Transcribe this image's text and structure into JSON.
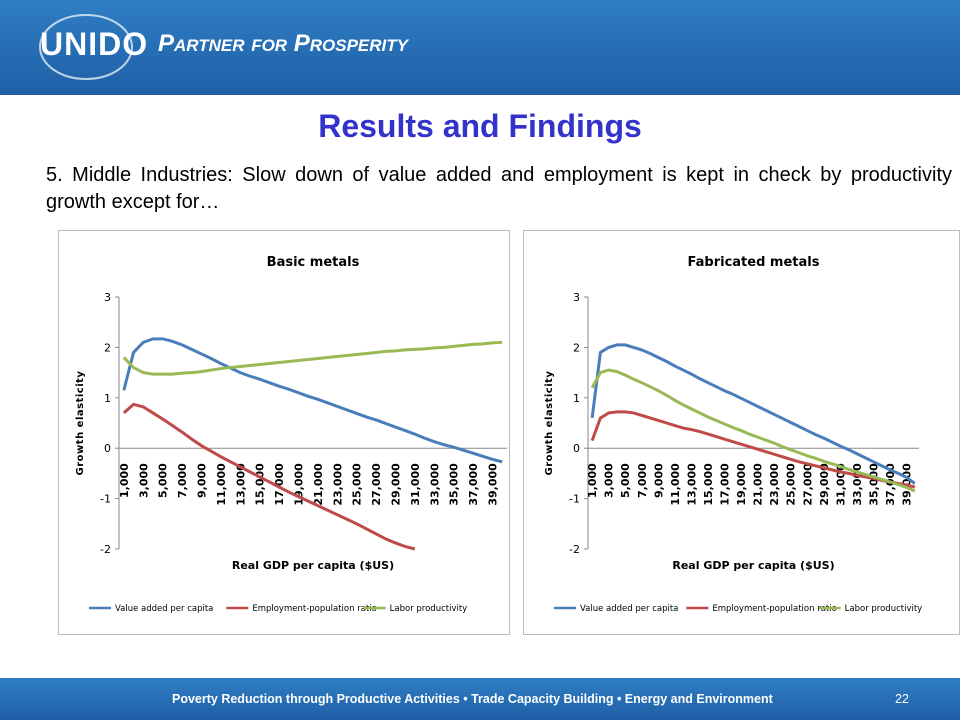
{
  "header": {
    "org": "UNIDO",
    "tagline": "Partner for Prosperity"
  },
  "title": "Results and Findings",
  "body": "5. Middle Industries: Slow down of value added and employment is kept in check by productivity growth except for…",
  "footer": {
    "text": "Poverty Reduction through Productive Activities • Trade Capacity Building • Energy and Environment",
    "page": "22"
  },
  "chart_data": [
    {
      "type": "line",
      "title": "Basic metals",
      "xlabel": "Real GDP per capita ($US)",
      "ylabel": "Growth elasticity",
      "categories": [
        "1,000",
        null,
        "3,000",
        null,
        "5,000",
        null,
        "7,000",
        null,
        "9,000",
        null,
        "11,000",
        null,
        "13,000",
        null,
        "15,000",
        null,
        "17,000",
        null,
        "19,000",
        null,
        "21,000",
        null,
        "23,000",
        null,
        "25,000",
        null,
        "27,000",
        null,
        "29,000",
        null,
        "31,000",
        null,
        "33,000",
        null,
        "35,000",
        null,
        "37,000",
        null,
        "39,000",
        null
      ],
      "ylim": [
        -2,
        3
      ],
      "yticks": [
        -2,
        -1,
        0,
        1,
        2,
        3
      ],
      "grid": false,
      "legend": "bottom",
      "series": [
        {
          "name": "Value added per capita",
          "color": "#4a7ebb",
          "values": [
            1.15,
            1.9,
            2.1,
            2.17,
            2.17,
            2.12,
            2.05,
            1.96,
            1.87,
            1.78,
            1.68,
            1.59,
            1.5,
            1.43,
            1.37,
            1.3,
            1.23,
            1.17,
            1.1,
            1.03,
            0.97,
            0.9,
            0.83,
            0.76,
            0.69,
            0.62,
            0.56,
            0.49,
            0.42,
            0.35,
            0.28,
            0.2,
            0.13,
            0.07,
            0.02,
            -0.04,
            -0.1,
            -0.16,
            -0.22,
            -0.27
          ]
        },
        {
          "name": "Employment-population ratio",
          "color": "#be4b48",
          "values": [
            0.7,
            0.87,
            0.82,
            0.7,
            0.58,
            0.45,
            0.32,
            0.18,
            0.05,
            -0.06,
            -0.17,
            -0.27,
            -0.37,
            -0.47,
            -0.57,
            -0.67,
            -0.77,
            -0.87,
            -0.96,
            -1.05,
            -1.14,
            -1.23,
            -1.32,
            -1.41,
            -1.5,
            -1.6,
            -1.7,
            -1.8,
            -1.88,
            -1.95,
            -2.0,
            null,
            null,
            null,
            null,
            null,
            null,
            null,
            null,
            null
          ]
        },
        {
          "name": "Labor productivity",
          "color": "#98b954",
          "values": [
            1.8,
            1.6,
            1.5,
            1.47,
            1.47,
            1.47,
            1.49,
            1.5,
            1.52,
            1.55,
            1.58,
            1.6,
            1.62,
            1.64,
            1.66,
            1.68,
            1.7,
            1.72,
            1.74,
            1.76,
            1.78,
            1.8,
            1.82,
            1.84,
            1.86,
            1.88,
            1.9,
            1.92,
            1.93,
            1.95,
            1.96,
            1.97,
            1.99,
            2.0,
            2.02,
            2.04,
            2.06,
            2.07,
            2.09,
            2.1
          ]
        }
      ]
    },
    {
      "type": "line",
      "title": "Fabricated metals",
      "xlabel": "Real GDP per capita ($US)",
      "ylabel": "Growth elasticity",
      "categories": [
        "1,000",
        null,
        "3,000",
        null,
        "5,000",
        null,
        "7,000",
        null,
        "9,000",
        null,
        "11,000",
        null,
        "13,000",
        null,
        "15,000",
        null,
        "17,000",
        null,
        "19,000",
        null,
        "21,000",
        null,
        "23,000",
        null,
        "25,000",
        null,
        "27,000",
        null,
        "29,000",
        null,
        "31,000",
        null,
        "33,000",
        null,
        "35,000",
        null,
        "37,000",
        null,
        "39,000",
        null
      ],
      "ylim": [
        -2,
        3
      ],
      "yticks": [
        -2,
        -1,
        0,
        1,
        2,
        3
      ],
      "grid": false,
      "legend": "bottom",
      "series": [
        {
          "name": "Value added per capita",
          "color": "#4a7ebb",
          "values": [
            0.6,
            1.9,
            2.0,
            2.05,
            2.05,
            2.0,
            1.95,
            1.88,
            1.8,
            1.72,
            1.63,
            1.55,
            1.47,
            1.38,
            1.3,
            1.22,
            1.14,
            1.07,
            0.99,
            0.91,
            0.83,
            0.75,
            0.67,
            0.59,
            0.51,
            0.43,
            0.35,
            0.27,
            0.2,
            0.12,
            0.04,
            -0.03,
            -0.11,
            -0.19,
            -0.27,
            -0.35,
            -0.43,
            -0.5,
            -0.58,
            -0.7
          ]
        },
        {
          "name": "Employment-population ratio",
          "color": "#be4b48",
          "values": [
            0.15,
            0.6,
            0.7,
            0.72,
            0.72,
            0.7,
            0.65,
            0.6,
            0.55,
            0.5,
            0.45,
            0.4,
            0.37,
            0.33,
            0.28,
            0.23,
            0.18,
            0.13,
            0.08,
            0.03,
            -0.02,
            -0.07,
            -0.12,
            -0.17,
            -0.22,
            -0.27,
            -0.31,
            -0.35,
            -0.39,
            -0.43,
            -0.47,
            -0.5,
            -0.54,
            -0.57,
            -0.6,
            -0.64,
            -0.67,
            -0.7,
            -0.73,
            -0.77
          ]
        },
        {
          "name": "Labor productivity",
          "color": "#98b954",
          "values": [
            1.2,
            1.5,
            1.55,
            1.52,
            1.45,
            1.37,
            1.3,
            1.22,
            1.14,
            1.05,
            0.95,
            0.86,
            0.78,
            0.7,
            0.62,
            0.55,
            0.48,
            0.41,
            0.35,
            0.28,
            0.22,
            0.16,
            0.1,
            0.03,
            -0.03,
            -0.09,
            -0.15,
            -0.2,
            -0.26,
            -0.31,
            -0.36,
            -0.42,
            -0.47,
            -0.52,
            -0.57,
            -0.62,
            -0.67,
            -0.72,
            -0.78,
            -0.85
          ]
        }
      ]
    }
  ]
}
